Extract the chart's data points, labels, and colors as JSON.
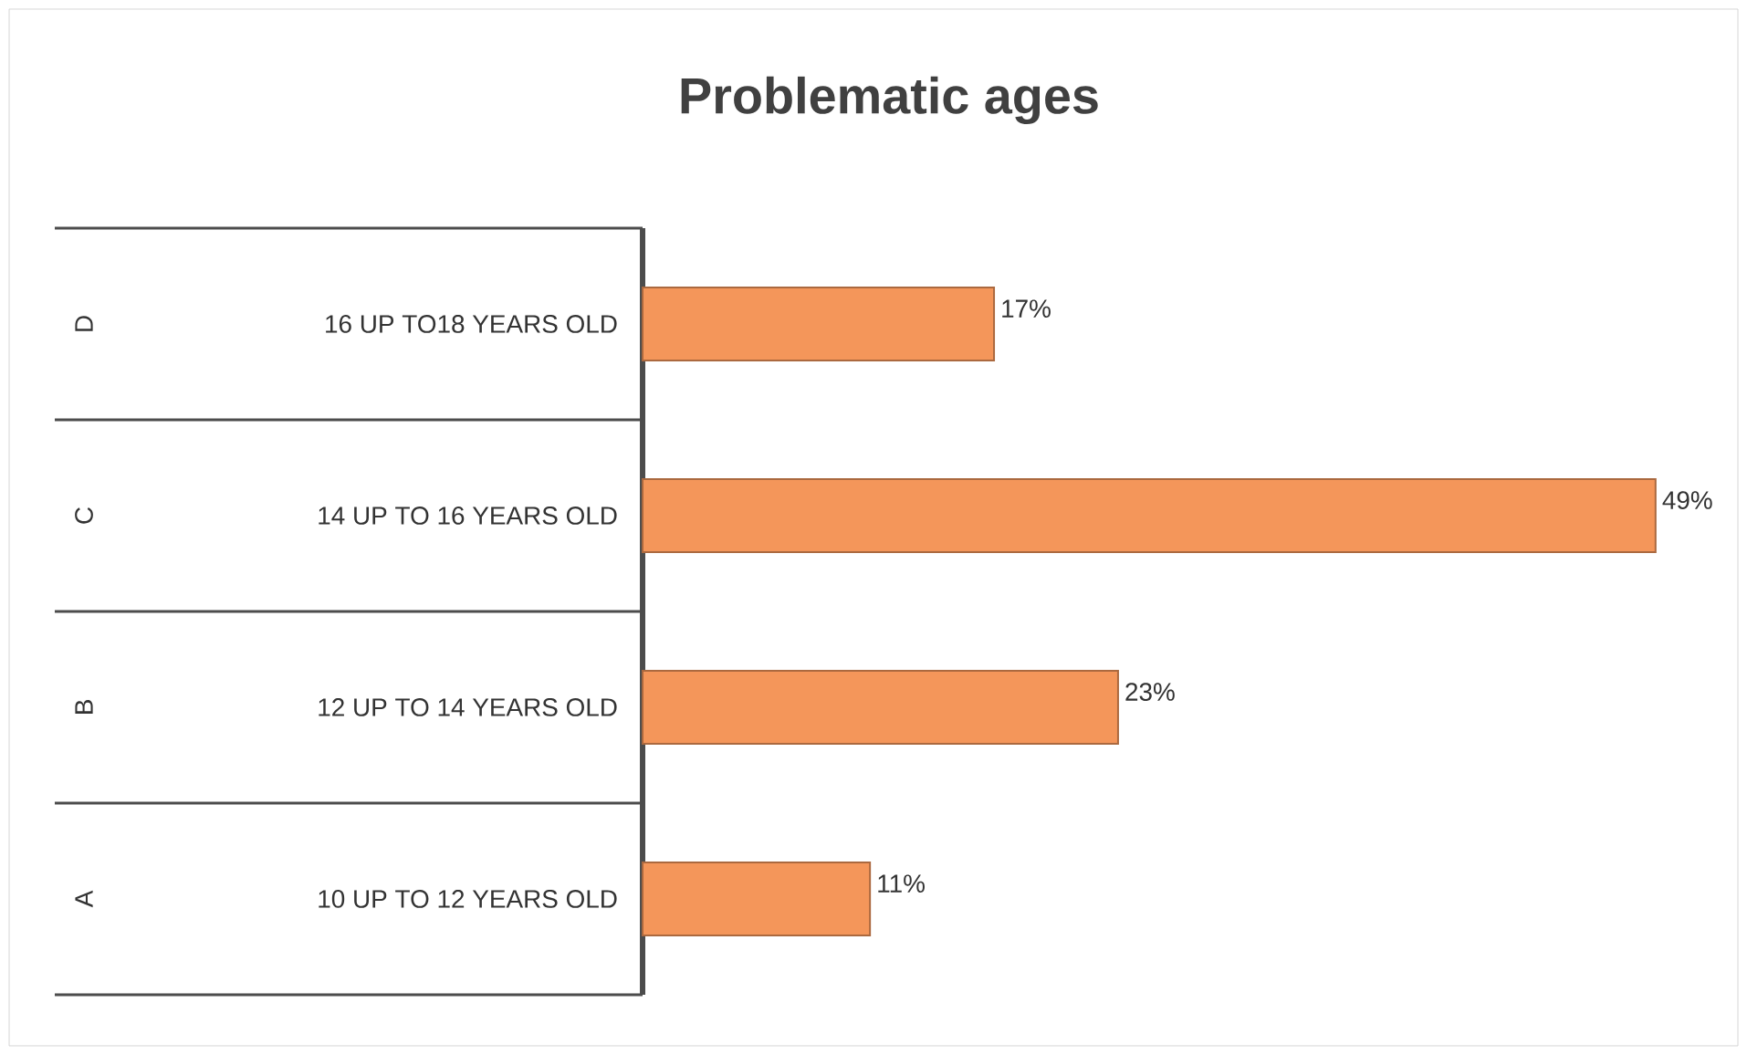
{
  "chart_data": {
    "type": "bar",
    "orientation": "horizontal",
    "title": "Problematic ages",
    "categories": [
      "16 UP TO18 YEARS OLD",
      "14 UP TO 16 YEARS OLD",
      "12 UP TO 14 YEARS OLD",
      "10 UP TO 12 YEARS OLD"
    ],
    "annotations": [
      "D",
      "C",
      "B",
      "A"
    ],
    "values": [
      17,
      49,
      23,
      11
    ],
    "value_labels": [
      "17%",
      "49%",
      "23%",
      "11%"
    ],
    "color": "#f4965a",
    "tick_labels": "y"
  }
}
